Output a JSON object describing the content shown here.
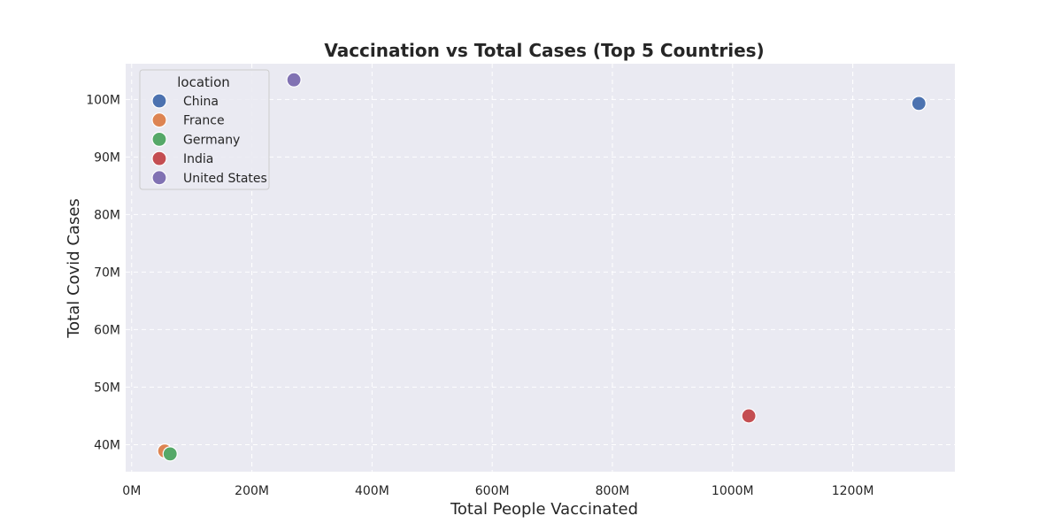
{
  "chart_data": {
    "type": "scatter",
    "title": "Vaccination vs Total Cases (Top 5 Countries)",
    "xlabel": "Total People Vaccinated",
    "ylabel": "Total Covid Cases",
    "xlim": [
      -10,
      1370
    ],
    "ylim": [
      35.3,
      106.2
    ],
    "x_unit": "millions",
    "y_unit": "millions",
    "x_ticks": [
      0,
      200,
      400,
      600,
      800,
      1000,
      1200
    ],
    "x_tick_labels": [
      "0M",
      "200M",
      "400M",
      "600M",
      "800M",
      "1000M",
      "1200M"
    ],
    "y_ticks": [
      40,
      50,
      60,
      70,
      80,
      90,
      100
    ],
    "y_tick_labels": [
      "40M",
      "50M",
      "60M",
      "70M",
      "80M",
      "90M",
      "100M"
    ],
    "grid": true,
    "grid_style": "dashed",
    "background": "#eaeaf2",
    "legend_title": "location",
    "legend_position": "top-left",
    "series": [
      {
        "name": "China",
        "color": "#4c72b0",
        "x": [
          1310
        ],
        "y": [
          99.3
        ]
      },
      {
        "name": "France",
        "color": "#dd8452",
        "x": [
          55
        ],
        "y": [
          38.9
        ]
      },
      {
        "name": "Germany",
        "color": "#55a868",
        "x": [
          64
        ],
        "y": [
          38.4
        ]
      },
      {
        "name": "India",
        "color": "#c44e52",
        "x": [
          1027
        ],
        "y": [
          45.0
        ]
      },
      {
        "name": "United States",
        "color": "#8172b3",
        "x": [
          270
        ],
        "y": [
          103.4
        ]
      }
    ]
  }
}
